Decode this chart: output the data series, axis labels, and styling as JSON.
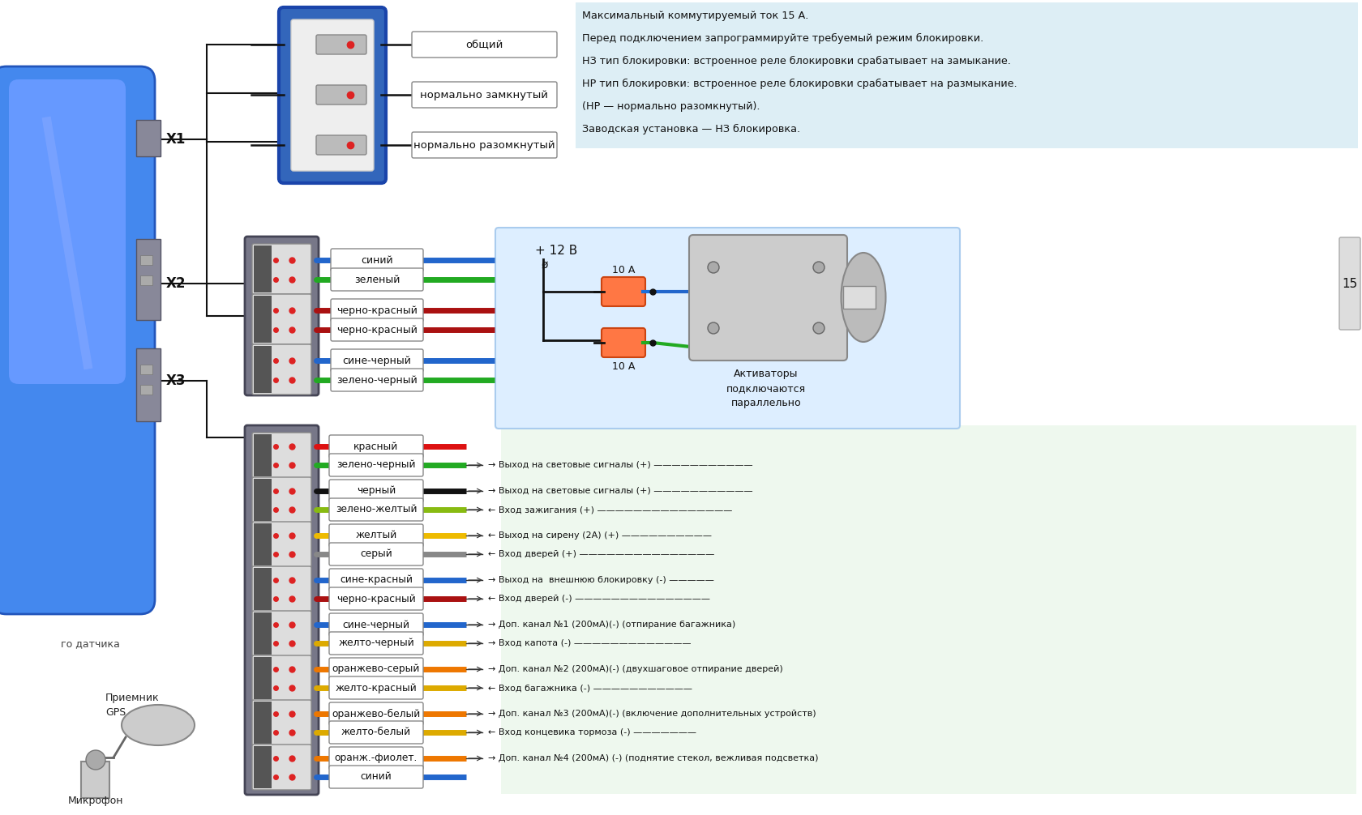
{
  "bg_color": "#ffffff",
  "info_box_color": "#ddeef5",
  "info_lines": [
    "Максимальный коммутируемый ток 15 А.",
    "Перед подключением запрограммируйте требуемый ре...",
    "НЗ тип блокировки: встроенное реле блокировки сраба...",
    "НР тип блокировки: встроенное реле блокировки сраба...",
    "(НР — нормально разомкнутый).",
    "Заводская установка — НЗ блокировка."
  ],
  "info_lines_full": [
    "Максимальный коммутируемый ток 15 А.",
    "Перед подключением запрограммируйте требуемый режим блокировки.",
    "НЗ тип блокировки: встроенное реле блокировки срабатывает на замыкание.",
    "НР тип блокировки: встроенное реле блокировки срабатывает на размыкание.",
    "(НР — нормально разомкнутый).",
    "Заводская установка — НЗ блокировка."
  ],
  "relay_labels": [
    "общий",
    "нормально замкнутый",
    "нормально разомкнутый"
  ],
  "x2_wire_labels": [
    "синий",
    "зеленый",
    "черно-красный",
    "черно-красный",
    "сине-черный",
    "зелено-черный"
  ],
  "x2_wire_colors": [
    "#2266cc",
    "#22aa22",
    "#aa1111",
    "#aa1111",
    "#2266cc",
    "#22aa22"
  ],
  "x2_wire_black_stripe": [
    false,
    false,
    true,
    true,
    true,
    true
  ],
  "x3_wire_labels": [
    "красный",
    "зелено-черный",
    "черный",
    "зелено-желтый",
    "желтый",
    "серый",
    "сине-красный",
    "черно-красный",
    "сине-черный",
    "желто-черный",
    "оранжево-серый",
    "желто-красный",
    "оранжево-белый",
    "желто-белый",
    "оранж.-фиолет.",
    "синий"
  ],
  "x3_wire_colors": [
    "#dd1111",
    "#22aa22",
    "#111111",
    "#88bb11",
    "#eebb00",
    "#888888",
    "#2266cc",
    "#aa1111",
    "#2266cc",
    "#ddaa00",
    "#ee7700",
    "#ddaa00",
    "#ee7700",
    "#ddaa00",
    "#ee7700",
    "#2266cc"
  ],
  "x3_right_labels": [
    "→ Выход на световые сигналы (+) ———————————",
    "→ Выход на световые сигналы (+) ———————————",
    "← Вход зажигания (+) ———————————————",
    "← Выход на сирену (2А) (+) ——————————",
    "← Вход дверей (+) ———————————————",
    "→ Выход на  внешнюю блокировку (-) —————",
    "← Вход дверей (-) ———————————————",
    "→ Доп. канал №1 (200мА)(-) (отпирание багажника)",
    "→ Вход капота (-) —————————————",
    "→ Доп. канал №2 (200мА)(-) (двухшаговое отпирание дверей)",
    "← Вход багажника (-) ———————————",
    "→ Доп. канал №3 (200мА)(-) (включение дополнительных устройств)",
    "← Вход концевика тормоза (-) ———————",
    "→ Доп. канал №4 (200мА) (-) (поднятие стекол, вежливая подсветка)"
  ],
  "fuse_label": "10 А",
  "voltage_label": "+ 12 В",
  "actuator_label": "Активаторы\nподключаются\nпараллельно",
  "connector_labels": [
    "X1",
    "X2",
    "X3"
  ],
  "gps_label": "Приемник\nGPS",
  "mic_label": "Микрофон",
  "sensor_label": "го датчика",
  "label_15": "15"
}
